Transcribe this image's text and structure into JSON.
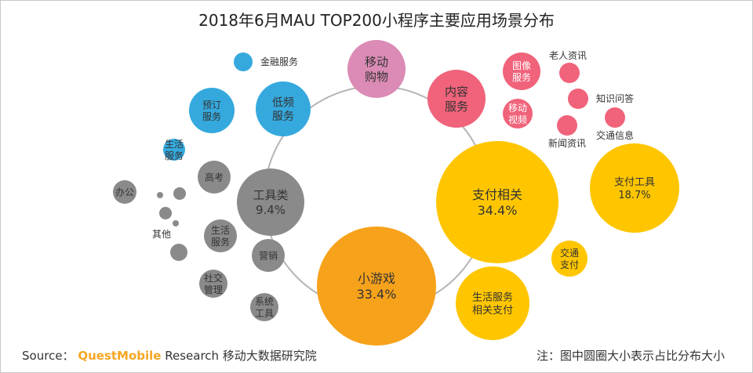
{
  "title": "2018年6月MAU TOP200小程序主要应用场景分布",
  "footer": {
    "source_label": "Source：",
    "brand": "QuestMobile",
    "source_rest": "Research 移动大数据研究院",
    "note": "注：图中圆圈大小表示占比分布大小"
  },
  "colors": {
    "payment": "#ffc600",
    "game": "#f7a21b",
    "tools": "#8a8a8a",
    "lifestyle": "#35a9de",
    "shopping": "#db8bb5",
    "content": "#f0637a",
    "hub_line": "#b5b5b5"
  },
  "chart_data": {
    "type": "bubble",
    "title": "2018年6月MAU TOP200小程序主要应用场景分布",
    "series": [
      {
        "name": "支付相关",
        "value_pct": 34.4,
        "value_label": "34.4%",
        "color": "#ffc600",
        "children": [
          {
            "label": "支付工具",
            "value_pct": 18.7,
            "value_label": "18.7%"
          },
          {
            "label": "生活服务\n相关支付"
          },
          {
            "label": "交通\n支付"
          }
        ]
      },
      {
        "name": "小游戏",
        "value_pct": 33.4,
        "value_label": "33.4%",
        "color": "#f7a21b",
        "children": []
      },
      {
        "name": "工具类",
        "value_pct": 9.4,
        "value_label": "9.4%",
        "color": "#8a8a8a",
        "children": [
          {
            "label": "高考"
          },
          {
            "label": "办公"
          },
          {
            "label": "其他"
          },
          {
            "label": "生活\n服务"
          },
          {
            "label": "营销"
          },
          {
            "label": "社交\n管理"
          },
          {
            "label": "系统\n工具"
          }
        ]
      },
      {
        "name": "低频\n服务",
        "color": "#35a9de",
        "children": [
          {
            "label": "金融服务"
          },
          {
            "label": "预订\n服务"
          },
          {
            "label": "生活\n服务"
          }
        ]
      },
      {
        "name": "移动\n购物",
        "color": "#db8bb5",
        "children": []
      },
      {
        "name": "内容\n服务",
        "color": "#f0637a",
        "children": [
          {
            "label": "图像\n服务"
          },
          {
            "label": "移动\n视频"
          },
          {
            "label": "老人资讯"
          },
          {
            "label": "知识问答"
          },
          {
            "label": "交通信息"
          },
          {
            "label": "新闻资讯"
          }
        ]
      }
    ]
  }
}
